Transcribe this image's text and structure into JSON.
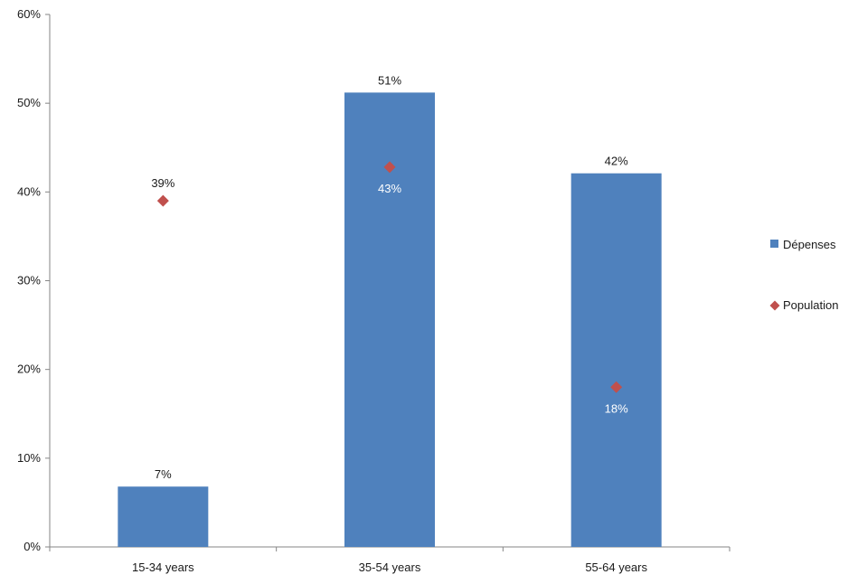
{
  "chart_data": {
    "type": "bar",
    "categories": [
      "15-34 years",
      "35-54 years",
      "55-64 years"
    ],
    "y_ticks": [
      "0%",
      "10%",
      "20%",
      "30%",
      "40%",
      "50%",
      "60%"
    ],
    "ylim": [
      0,
      60
    ],
    "grid": false,
    "legend_position": "right",
    "series": [
      {
        "name": "Dépenses",
        "kind": "bar",
        "color": "#4f81bd",
        "values": [
          6.8,
          51.2,
          42.1
        ],
        "labels": [
          "7%",
          "51%",
          "42%"
        ]
      },
      {
        "name": "Population",
        "kind": "marker",
        "marker": "diamond",
        "color": "#c0504d",
        "values": [
          39.0,
          42.8,
          18.0
        ],
        "labels": [
          "39%",
          "43%",
          "18%"
        ]
      }
    ]
  }
}
